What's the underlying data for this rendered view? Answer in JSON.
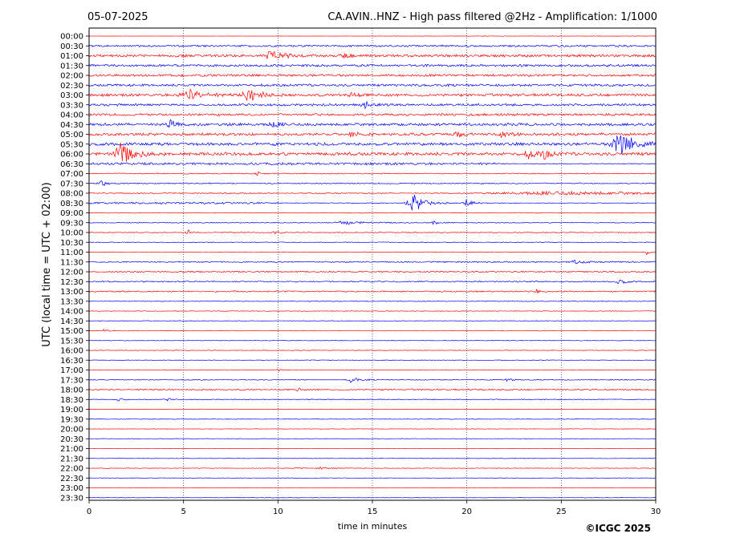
{
  "chart_data": {
    "type": "line",
    "date": "05-07-2025",
    "title": "CA.AVIN..HNZ - High pass filtered @2Hz - Amplification: 1/1000",
    "xlabel": "time in minutes",
    "ylabel": "UTC (local time = UTC + 02:00)",
    "copyright": "©ICGC 2025",
    "xlim": [
      0,
      30
    ],
    "x_ticks": [
      "0",
      "5",
      "10",
      "15",
      "20",
      "25",
      "30"
    ],
    "x_tick_values": [
      0,
      5,
      10,
      15,
      20,
      25,
      30
    ],
    "grid_x": true,
    "colors": {
      "even": "#ff0000",
      "odd": "#0000ff"
    },
    "traces": [
      {
        "label": "00:00",
        "noise": 0.3,
        "start": 0,
        "end": 30,
        "events": [],
        "faint_until": 15
      },
      {
        "label": "00:30",
        "noise": 1.3,
        "start": 0,
        "end": 30,
        "events": []
      },
      {
        "label": "01:00",
        "noise": 1.8,
        "start": 0,
        "end": 30,
        "events": [
          {
            "t": 9.7,
            "amp": 7,
            "dur": 0.9
          },
          {
            "t": 13.5,
            "amp": 3,
            "dur": 0.5
          }
        ]
      },
      {
        "label": "01:30",
        "noise": 1.6,
        "start": 0,
        "end": 30,
        "events": []
      },
      {
        "label": "02:00",
        "noise": 1.6,
        "start": 0,
        "end": 30,
        "events": []
      },
      {
        "label": "02:30",
        "noise": 1.6,
        "start": 0,
        "end": 30,
        "events": []
      },
      {
        "label": "03:00",
        "noise": 1.8,
        "start": 0,
        "end": 30,
        "events": [
          {
            "t": 5.2,
            "amp": 9,
            "dur": 1.0
          },
          {
            "t": 8.5,
            "amp": 9,
            "dur": 0.9
          },
          {
            "t": 13.8,
            "amp": 4,
            "dur": 0.6
          }
        ]
      },
      {
        "label": "03:30",
        "noise": 1.6,
        "start": 0,
        "end": 30,
        "events": [
          {
            "t": 14.6,
            "amp": 5,
            "dur": 0.6
          }
        ]
      },
      {
        "label": "04:00",
        "noise": 1.6,
        "start": 0,
        "end": 30,
        "events": []
      },
      {
        "label": "04:30",
        "noise": 1.8,
        "start": 0,
        "end": 30,
        "events": [
          {
            "t": 4.3,
            "amp": 5,
            "dur": 0.5
          },
          {
            "t": 9.7,
            "amp": 4,
            "dur": 0.6
          }
        ]
      },
      {
        "label": "05:00",
        "noise": 1.8,
        "start": 0,
        "end": 30,
        "events": [
          {
            "t": 13.9,
            "amp": 4,
            "dur": 0.6
          },
          {
            "t": 19.4,
            "amp": 4,
            "dur": 0.6
          },
          {
            "t": 21.9,
            "amp": 4,
            "dur": 0.5
          }
        ]
      },
      {
        "label": "05:30",
        "noise": 2.0,
        "start": 0,
        "end": 30,
        "events": [
          {
            "t": 28.1,
            "amp": 22,
            "dur": 1.0
          }
        ]
      },
      {
        "label": "06:00",
        "noise": 2.2,
        "start": 0,
        "end": 30,
        "events": [
          {
            "t": 1.7,
            "amp": 14,
            "dur": 1.0
          },
          {
            "t": 23.3,
            "amp": 5,
            "dur": 0.6
          },
          {
            "t": 24.1,
            "amp": 5,
            "dur": 0.6
          }
        ]
      },
      {
        "label": "06:30",
        "noise": 1.6,
        "start": 0,
        "end": 30,
        "events": [],
        "faint_after": 21.5
      },
      {
        "label": "07:00",
        "noise": 0.7,
        "start": 0,
        "end": 30,
        "events": [
          {
            "t": 8.9,
            "amp": 3,
            "dur": 0.3
          }
        ]
      },
      {
        "label": "07:30",
        "noise": 0.8,
        "start": 0,
        "end": 30,
        "events": [
          {
            "t": 0.7,
            "amp": 4,
            "dur": 0.6
          }
        ]
      },
      {
        "label": "08:00",
        "noise": 0.7,
        "start": 0,
        "end": 30,
        "events": [
          {
            "t": 25,
            "amp": 2.2,
            "dur": 9
          }
        ]
      },
      {
        "label": "08:30",
        "noise": 1.3,
        "start": 0,
        "end": 30,
        "events": [
          {
            "t": 17.2,
            "amp": 12,
            "dur": 1.0
          },
          {
            "t": 20.0,
            "amp": 5,
            "dur": 0.6
          }
        ],
        "faint_after": 10
      },
      {
        "label": "09:00",
        "noise": 0.5,
        "start": 0,
        "end": 30,
        "events": []
      },
      {
        "label": "09:30",
        "noise": 0.6,
        "start": 0,
        "end": 30,
        "events": [
          {
            "t": 13.5,
            "amp": 2.5,
            "dur": 1.5
          },
          {
            "t": 18.3,
            "amp": 3,
            "dur": 0.5
          }
        ]
      },
      {
        "label": "10:00",
        "noise": 0.6,
        "start": 0,
        "end": 30,
        "events": [
          {
            "t": 5.2,
            "amp": 5,
            "dur": 0.3
          },
          {
            "t": 9.9,
            "amp": 3,
            "dur": 0.4
          }
        ]
      },
      {
        "label": "10:30",
        "noise": 0.5,
        "start": 0,
        "end": 30,
        "events": []
      },
      {
        "label": "11:00",
        "noise": 0.5,
        "start": 0,
        "end": 30,
        "events": [
          {
            "t": 29.5,
            "amp": 7,
            "dur": 0.15
          }
        ]
      },
      {
        "label": "11:30",
        "noise": 0.9,
        "start": 0,
        "end": 30,
        "events": [
          {
            "t": 25.8,
            "amp": 3,
            "dur": 0.6
          }
        ]
      },
      {
        "label": "12:00",
        "noise": 0.9,
        "start": 0,
        "end": 30,
        "events": []
      },
      {
        "label": "12:30",
        "noise": 0.9,
        "start": 0,
        "end": 30,
        "events": [
          {
            "t": 28.1,
            "amp": 4,
            "dur": 0.4
          }
        ]
      },
      {
        "label": "13:00",
        "noise": 0.9,
        "start": 0,
        "end": 30,
        "events": [
          {
            "t": 23.7,
            "amp": 3,
            "dur": 0.3
          }
        ]
      },
      {
        "label": "13:30",
        "noise": 0.5,
        "start": 0,
        "end": 30,
        "events": []
      },
      {
        "label": "14:00",
        "noise": 0.4,
        "start": 0,
        "end": 30,
        "events": []
      },
      {
        "label": "14:30",
        "noise": 0.4,
        "start": 0,
        "end": 30,
        "events": []
      },
      {
        "label": "15:00",
        "noise": 0.5,
        "start": 0,
        "end": 30,
        "events": [
          {
            "t": 0.8,
            "amp": 2,
            "dur": 0.3
          }
        ]
      },
      {
        "label": "15:30",
        "noise": 0.4,
        "start": 0,
        "end": 30,
        "events": []
      },
      {
        "label": "16:00",
        "noise": 0.4,
        "start": 0,
        "end": 30,
        "events": []
      },
      {
        "label": "16:30",
        "noise": 0.4,
        "start": 0,
        "end": 30,
        "events": []
      },
      {
        "label": "17:00",
        "noise": 0.5,
        "start": 0,
        "end": 30,
        "events": [
          {
            "t": 10.0,
            "amp": 2,
            "dur": 0.3
          }
        ]
      },
      {
        "label": "17:30",
        "noise": 0.6,
        "start": 0,
        "end": 30,
        "events": [
          {
            "t": 13.9,
            "amp": 4,
            "dur": 0.6
          },
          {
            "t": 22.2,
            "amp": 2,
            "dur": 0.4
          }
        ],
        "gap": [
          11.8,
          13.5
        ]
      },
      {
        "label": "18:00",
        "noise": 1.0,
        "start": 0,
        "end": 30,
        "events": [
          {
            "t": 11.0,
            "amp": 2.5,
            "dur": 0.3
          }
        ]
      },
      {
        "label": "18:30",
        "noise": 0.6,
        "start": 0,
        "end": 30,
        "events": [
          {
            "t": 1.6,
            "amp": 3,
            "dur": 0.4
          },
          {
            "t": 4.2,
            "amp": 2,
            "dur": 0.4
          }
        ]
      },
      {
        "label": "19:00",
        "noise": 0.4,
        "start": 0,
        "end": 30,
        "events": []
      },
      {
        "label": "19:30",
        "noise": 0.4,
        "start": 0,
        "end": 30,
        "events": []
      },
      {
        "label": "20:00",
        "noise": 0.3,
        "start": 0,
        "end": 30,
        "events": []
      },
      {
        "label": "20:30",
        "noise": 0.3,
        "start": 0,
        "end": 30,
        "events": []
      },
      {
        "label": "21:00",
        "noise": 0.3,
        "start": 0,
        "end": 30,
        "events": []
      },
      {
        "label": "21:30",
        "noise": 0.3,
        "start": 0,
        "end": 30,
        "events": []
      },
      {
        "label": "22:00",
        "noise": 0.4,
        "start": 0,
        "end": 30,
        "events": [
          {
            "t": 11.0,
            "amp": 2,
            "dur": 0.3
          },
          {
            "t": 12.3,
            "amp": 1.5,
            "dur": 0.8
          }
        ]
      },
      {
        "label": "22:30",
        "noise": 0.3,
        "start": 0,
        "end": 30,
        "events": []
      },
      {
        "label": "23:00",
        "noise": 0.3,
        "start": 0,
        "end": 30,
        "events": []
      },
      {
        "label": "23:30",
        "noise": 0.3,
        "start": 0,
        "end": 30,
        "events": []
      }
    ]
  }
}
